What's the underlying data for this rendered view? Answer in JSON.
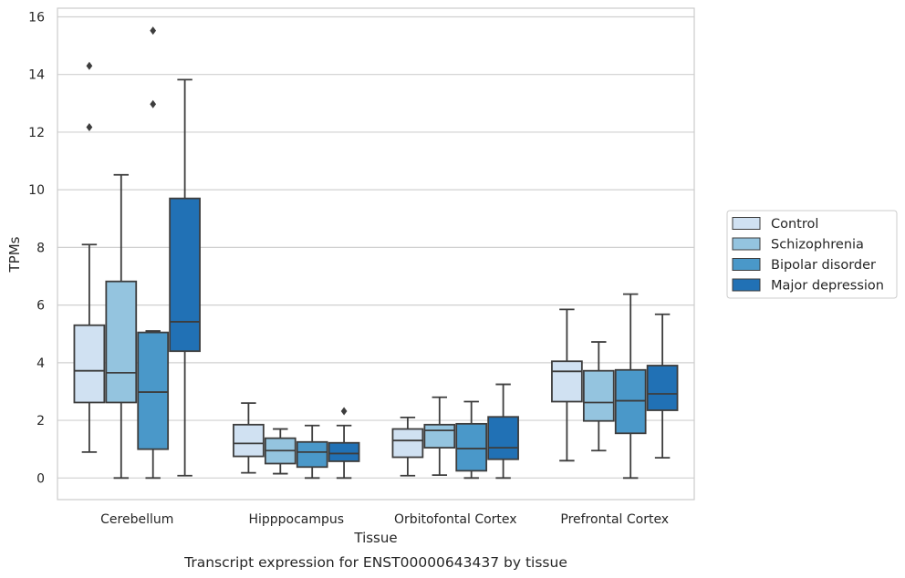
{
  "chart_data": {
    "type": "box",
    "xlabel": "Tissue",
    "ylabel": "TPMs",
    "caption": "Transcript expression for ENST00000643437 by tissue",
    "ylim": [
      -0.75,
      16.3
    ],
    "yticks": [
      0,
      2,
      4,
      6,
      8,
      10,
      12,
      14,
      16
    ],
    "grid": true,
    "legend_position": "right",
    "categories": [
      "Cerebellum",
      "Hipppocampus",
      "Orbitofontal Cortex",
      "Prefrontal Cortex"
    ],
    "series": [
      {
        "name": "Control",
        "color": "#d0e1f2",
        "boxes": [
          {
            "whisker_low": 0.9,
            "q1": 2.62,
            "median": 3.72,
            "q3": 5.3,
            "whisker_high": 8.1,
            "outliers": [
              12.17,
              14.3
            ]
          },
          {
            "whisker_low": 0.18,
            "q1": 0.75,
            "median": 1.2,
            "q3": 1.85,
            "whisker_high": 2.6,
            "outliers": []
          },
          {
            "whisker_low": 0.08,
            "q1": 0.72,
            "median": 1.3,
            "q3": 1.7,
            "whisker_high": 2.1,
            "outliers": []
          },
          {
            "whisker_low": 0.6,
            "q1": 2.65,
            "median": 3.7,
            "q3": 4.05,
            "whisker_high": 5.85,
            "outliers": []
          }
        ]
      },
      {
        "name": "Schizophrenia",
        "color": "#94c4df",
        "boxes": [
          {
            "whisker_low": 0.0,
            "q1": 2.62,
            "median": 3.65,
            "q3": 6.82,
            "whisker_high": 10.52,
            "outliers": []
          },
          {
            "whisker_low": 0.15,
            "q1": 0.5,
            "median": 0.95,
            "q3": 1.38,
            "whisker_high": 1.7,
            "outliers": []
          },
          {
            "whisker_low": 0.1,
            "q1": 1.05,
            "median": 1.65,
            "q3": 1.85,
            "whisker_high": 2.8,
            "outliers": []
          },
          {
            "whisker_low": 0.95,
            "q1": 1.98,
            "median": 2.62,
            "q3": 3.72,
            "whisker_high": 4.72,
            "outliers": []
          }
        ]
      },
      {
        "name": "Bipolar disorder",
        "color": "#4a98c9",
        "boxes": [
          {
            "whisker_low": 0.0,
            "q1": 1.0,
            "median": 2.98,
            "q3": 5.05,
            "whisker_high": 5.1,
            "outliers": [
              12.97,
              15.52
            ]
          },
          {
            "whisker_low": 0.0,
            "q1": 0.38,
            "median": 0.9,
            "q3": 1.25,
            "whisker_high": 1.82,
            "outliers": []
          },
          {
            "whisker_low": 0.0,
            "q1": 0.25,
            "median": 1.02,
            "q3": 1.88,
            "whisker_high": 2.65,
            "outliers": []
          },
          {
            "whisker_low": 0.0,
            "q1": 1.55,
            "median": 2.68,
            "q3": 3.75,
            "whisker_high": 6.38,
            "outliers": []
          }
        ]
      },
      {
        "name": "Major depression",
        "color": "#2171b5",
        "boxes": [
          {
            "whisker_low": 0.08,
            "q1": 4.4,
            "median": 5.42,
            "q3": 9.7,
            "whisker_high": 13.82,
            "outliers": []
          },
          {
            "whisker_low": 0.0,
            "q1": 0.58,
            "median": 0.85,
            "q3": 1.22,
            "whisker_high": 1.82,
            "outliers": [
              2.32
            ]
          },
          {
            "whisker_low": 0.0,
            "q1": 0.65,
            "median": 1.05,
            "q3": 2.12,
            "whisker_high": 3.25,
            "outliers": []
          },
          {
            "whisker_low": 0.7,
            "q1": 2.35,
            "median": 2.92,
            "q3": 3.9,
            "whisker_high": 5.68,
            "outliers": []
          }
        ]
      }
    ]
  }
}
